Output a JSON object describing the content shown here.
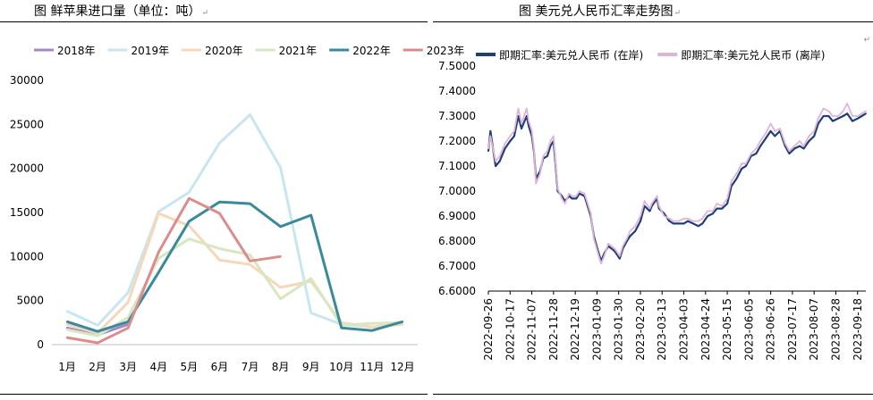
{
  "left_title": "图  鲜苹果进口量（单位：吨）",
  "right_title": "图  美元兑人民币汇率走势图",
  "return_mark": "↵",
  "chart_data": [
    {
      "type": "line",
      "title": "鲜苹果进口量（单位：吨）",
      "categories": [
        "1月",
        "2月",
        "3月",
        "4月",
        "5月",
        "6月",
        "7月",
        "8月",
        "9月",
        "10月",
        "11月",
        "12月"
      ],
      "ylim": [
        0,
        30000
      ],
      "yticks": [
        0,
        5000,
        10000,
        15000,
        20000,
        25000,
        30000
      ],
      "legend_position": "top",
      "series": [
        {
          "name": "2018年",
          "color": "#a48ac4",
          "values": [
            1900,
            1100,
            2300,
            null,
            null,
            null,
            null,
            null,
            null,
            null,
            null,
            null
          ]
        },
        {
          "name": "2019年",
          "color": "#c8e6ef",
          "values": [
            3800,
            2200,
            5900,
            15100,
            17300,
            22900,
            26100,
            20100,
            3600,
            2300,
            2000,
            2500
          ]
        },
        {
          "name": "2020年",
          "color": "#f8d7b8",
          "values": [
            2300,
            1300,
            4800,
            14900,
            13500,
            9600,
            9100,
            6500,
            7200,
            2500,
            2000,
            2300
          ]
        },
        {
          "name": "2021年",
          "color": "#d6e7c2",
          "values": [
            1700,
            1000,
            3100,
            9800,
            12000,
            10900,
            10200,
            5200,
            7500,
            2200,
            2400,
            2500
          ]
        },
        {
          "name": "2022年",
          "color": "#3a8a9e",
          "values": [
            2600,
            1500,
            2600,
            8200,
            14000,
            16200,
            16000,
            13400,
            14700,
            1900,
            1600,
            2600
          ]
        },
        {
          "name": "2023年",
          "color": "#dc8c8c",
          "values": [
            800,
            200,
            1900,
            10500,
            16600,
            14900,
            9500,
            10000,
            null,
            null,
            null,
            null
          ]
        }
      ]
    },
    {
      "type": "line",
      "title": "美元兑人民币汇率走势图",
      "ylim": [
        6.6,
        7.5
      ],
      "yticks": [
        "6.6000",
        "6.7000",
        "6.8000",
        "6.9000",
        "7.0000",
        "7.1000",
        "7.2000",
        "7.3000",
        "7.4000",
        "7.5000"
      ],
      "xticks": [
        "2022-09-26",
        "2022-10-17",
        "2022-11-07",
        "2022-11-28",
        "2022-12-19",
        "2023-01-09",
        "2023-01-30",
        "2023-02-20",
        "2023-03-13",
        "2023-04-03",
        "2023-04-24",
        "2023-05-15",
        "2023-06-05",
        "2023-06-26",
        "2023-07-17",
        "2023-08-07",
        "2023-08-28",
        "2023-09-18"
      ],
      "legend_position": "top",
      "series": [
        {
          "name": "即期汇率:美元兑人民币 (在岸)",
          "color": "#1f3f7a",
          "x": [
            "2022-09-26",
            "2022-09-28",
            "2022-10-03",
            "2022-10-07",
            "2022-10-12",
            "2022-10-17",
            "2022-10-21",
            "2022-10-25",
            "2022-10-28",
            "2022-11-02",
            "2022-11-04",
            "2022-11-07",
            "2022-11-09",
            "2022-11-11",
            "2022-11-15",
            "2022-11-18",
            "2022-11-22",
            "2022-11-25",
            "2022-11-28",
            "2022-11-30",
            "2022-12-02",
            "2022-12-06",
            "2022-12-09",
            "2022-12-13",
            "2022-12-16",
            "2022-12-20",
            "2022-12-23",
            "2022-12-28",
            "2023-01-03",
            "2023-01-06",
            "2023-01-10",
            "2023-01-13",
            "2023-01-16",
            "2023-01-20",
            "2023-01-26",
            "2023-01-31",
            "2023-02-03",
            "2023-02-07",
            "2023-02-10",
            "2023-02-15",
            "2023-02-20",
            "2023-02-24",
            "2023-03-01",
            "2023-03-03",
            "2023-03-08",
            "2023-03-10",
            "2023-03-15",
            "2023-03-20",
            "2023-03-24",
            "2023-03-29",
            "2023-04-03",
            "2023-04-07",
            "2023-04-12",
            "2023-04-17",
            "2023-04-21",
            "2023-04-26",
            "2023-05-01",
            "2023-05-05",
            "2023-05-10",
            "2023-05-15",
            "2023-05-19",
            "2023-05-24",
            "2023-05-29",
            "2023-06-02",
            "2023-06-07",
            "2023-06-12",
            "2023-06-16",
            "2023-06-21",
            "2023-06-26",
            "2023-06-30",
            "2023-07-05",
            "2023-07-10",
            "2023-07-14",
            "2023-07-19",
            "2023-07-24",
            "2023-07-28",
            "2023-08-02",
            "2023-08-07",
            "2023-08-11",
            "2023-08-16",
            "2023-08-21",
            "2023-08-25",
            "2023-08-30",
            "2023-09-04",
            "2023-09-08",
            "2023-09-13",
            "2023-09-18",
            "2023-09-22",
            "2023-09-26"
          ],
          "values": [
            7.16,
            7.24,
            7.1,
            7.12,
            7.17,
            7.2,
            7.22,
            7.3,
            7.25,
            7.3,
            7.26,
            7.22,
            7.16,
            7.05,
            7.08,
            7.13,
            7.14,
            7.18,
            7.2,
            7.1,
            7.0,
            6.98,
            6.96,
            6.98,
            6.97,
            6.97,
            6.99,
            6.98,
            6.9,
            6.82,
            6.76,
            6.72,
            6.75,
            6.78,
            6.76,
            6.73,
            6.77,
            6.8,
            6.82,
            6.84,
            6.88,
            6.94,
            6.92,
            6.94,
            6.97,
            6.93,
            6.91,
            6.88,
            6.87,
            6.87,
            6.87,
            6.88,
            6.87,
            6.86,
            6.87,
            6.9,
            6.91,
            6.93,
            6.93,
            6.95,
            7.02,
            7.05,
            7.09,
            7.1,
            7.14,
            7.15,
            7.18,
            7.21,
            7.24,
            7.22,
            7.24,
            7.18,
            7.15,
            7.17,
            7.18,
            7.17,
            7.2,
            7.22,
            7.27,
            7.3,
            7.3,
            7.28,
            7.29,
            7.3,
            7.31,
            7.28,
            7.29,
            7.3,
            7.31
          ]
        },
        {
          "name": "即期汇率:美元兑人民币 (离岸)",
          "color": "#e0b4d6",
          "x": [
            "2022-09-26",
            "2022-09-28",
            "2022-10-03",
            "2022-10-07",
            "2022-10-12",
            "2022-10-17",
            "2022-10-21",
            "2022-10-25",
            "2022-10-28",
            "2022-11-02",
            "2022-11-04",
            "2022-11-07",
            "2022-11-09",
            "2022-11-11",
            "2022-11-15",
            "2022-11-18",
            "2022-11-22",
            "2022-11-25",
            "2022-11-28",
            "2022-11-30",
            "2022-12-02",
            "2022-12-06",
            "2022-12-09",
            "2022-12-13",
            "2022-12-16",
            "2022-12-20",
            "2022-12-23",
            "2022-12-28",
            "2023-01-03",
            "2023-01-06",
            "2023-01-10",
            "2023-01-13",
            "2023-01-16",
            "2023-01-20",
            "2023-01-26",
            "2023-01-31",
            "2023-02-03",
            "2023-02-07",
            "2023-02-10",
            "2023-02-15",
            "2023-02-20",
            "2023-02-24",
            "2023-03-01",
            "2023-03-03",
            "2023-03-08",
            "2023-03-10",
            "2023-03-15",
            "2023-03-20",
            "2023-03-24",
            "2023-03-29",
            "2023-04-03",
            "2023-04-07",
            "2023-04-12",
            "2023-04-17",
            "2023-04-21",
            "2023-04-26",
            "2023-05-01",
            "2023-05-05",
            "2023-05-10",
            "2023-05-15",
            "2023-05-19",
            "2023-05-24",
            "2023-05-29",
            "2023-06-02",
            "2023-06-07",
            "2023-06-12",
            "2023-06-16",
            "2023-06-21",
            "2023-06-26",
            "2023-06-30",
            "2023-07-05",
            "2023-07-10",
            "2023-07-14",
            "2023-07-19",
            "2023-07-24",
            "2023-07-28",
            "2023-08-02",
            "2023-08-07",
            "2023-08-11",
            "2023-08-16",
            "2023-08-21",
            "2023-08-25",
            "2023-08-30",
            "2023-09-04",
            "2023-09-08",
            "2023-09-13",
            "2023-09-18",
            "2023-09-22",
            "2023-09-26"
          ],
          "values": [
            7.17,
            7.22,
            7.12,
            7.14,
            7.19,
            7.22,
            7.24,
            7.33,
            7.27,
            7.33,
            7.28,
            7.24,
            7.17,
            7.03,
            7.07,
            7.14,
            7.16,
            7.2,
            7.22,
            7.11,
            7.01,
            6.97,
            6.95,
            6.99,
            6.98,
            6.98,
            7.0,
            6.99,
            6.91,
            6.81,
            6.75,
            6.71,
            6.74,
            6.79,
            6.77,
            6.74,
            6.78,
            6.81,
            6.84,
            6.86,
            6.9,
            6.96,
            6.93,
            6.95,
            6.98,
            6.94,
            6.9,
            6.89,
            6.88,
            6.88,
            6.89,
            6.89,
            6.88,
            6.88,
            6.89,
            6.92,
            6.92,
            6.95,
            6.94,
            6.97,
            7.04,
            7.07,
            7.11,
            7.11,
            7.15,
            7.17,
            7.2,
            7.23,
            7.27,
            7.24,
            7.25,
            7.19,
            7.16,
            7.18,
            7.2,
            7.18,
            7.22,
            7.24,
            7.29,
            7.33,
            7.32,
            7.3,
            7.3,
            7.32,
            7.35,
            7.3,
            7.3,
            7.31,
            7.32
          ]
        }
      ]
    }
  ]
}
